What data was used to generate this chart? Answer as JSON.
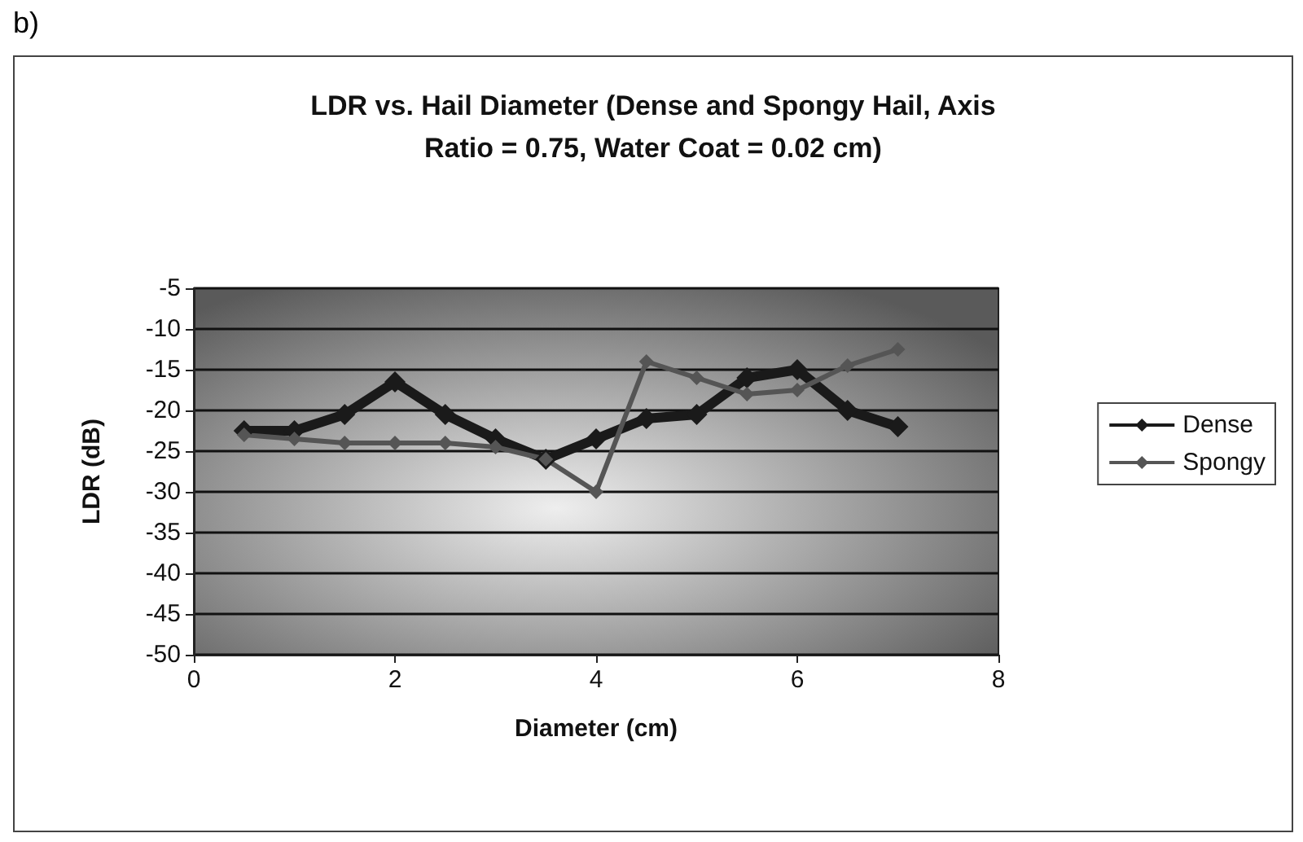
{
  "chart_data": {
    "type": "line",
    "title": "LDR vs. Hail Diameter (Dense and Spongy Hail, Axis\nRatio = 0.75, Water Coat = 0.02 cm)",
    "xlabel": "Diameter (cm)",
    "ylabel": "LDR (dB)",
    "annotations": [
      "b)"
    ],
    "x": [
      0.5,
      1,
      1.5,
      2,
      2.5,
      3,
      3.5,
      4,
      4.5,
      5,
      5.5,
      6,
      6.5,
      7
    ],
    "series": [
      {
        "name": "Dense",
        "color": "#1a1a1a",
        "values": [
          -22.5,
          -22.5,
          -20.5,
          -16.5,
          -20.5,
          -23.5,
          -26,
          -23.5,
          -21,
          -20.5,
          -16,
          -15,
          -20,
          -22
        ]
      },
      {
        "name": "Spongy",
        "color": "#555555",
        "values": [
          -23,
          -23.5,
          -24,
          -24,
          -24,
          -24.5,
          -26,
          -30,
          -14,
          -16,
          -18,
          -17.5,
          -14.5,
          -12.5
        ]
      }
    ],
    "xlim": [
      0,
      8
    ],
    "xticks": [
      0,
      2,
      4,
      6,
      8
    ],
    "ylim": [
      -50,
      -5
    ],
    "yticks": [
      -50,
      -45,
      -40,
      -35,
      -30,
      -25,
      -20,
      -15,
      -10,
      -5
    ],
    "grid": "y",
    "legend": "right",
    "marker": "diamond",
    "line_style": "solid"
  }
}
